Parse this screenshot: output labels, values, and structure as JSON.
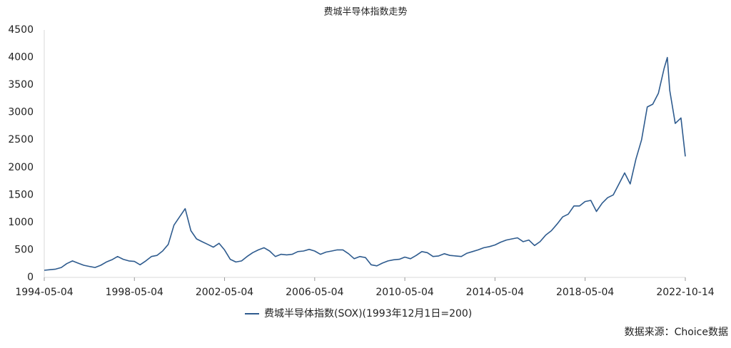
{
  "chart_data": {
    "type": "line",
    "title": "费城半导体指数走势",
    "source": "数据来源：Choice数据",
    "x": [
      "1994-05-04",
      "1994-08-04",
      "1994-11-04",
      "1995-02-04",
      "1995-05-04",
      "1995-08-04",
      "1995-11-04",
      "1996-02-04",
      "1996-05-04",
      "1996-08-04",
      "1996-11-04",
      "1997-02-04",
      "1997-05-04",
      "1997-08-04",
      "1997-11-04",
      "1998-02-04",
      "1998-05-04",
      "1998-08-04",
      "1998-11-04",
      "1999-02-04",
      "1999-05-04",
      "1999-08-04",
      "1999-11-04",
      "2000-02-04",
      "2000-05-04",
      "2000-08-04",
      "2000-11-04",
      "2001-02-04",
      "2001-05-04",
      "2001-08-04",
      "2001-11-04",
      "2002-02-04",
      "2002-05-04",
      "2002-08-04",
      "2002-11-04",
      "2003-02-04",
      "2003-05-04",
      "2003-08-04",
      "2003-11-04",
      "2004-02-04",
      "2004-05-04",
      "2004-08-04",
      "2004-11-04",
      "2005-02-04",
      "2005-05-04",
      "2005-08-04",
      "2005-11-04",
      "2006-02-04",
      "2006-05-04",
      "2006-08-04",
      "2006-11-04",
      "2007-02-04",
      "2007-05-04",
      "2007-08-04",
      "2007-11-04",
      "2008-02-04",
      "2008-05-04",
      "2008-08-04",
      "2008-11-04",
      "2009-02-04",
      "2009-05-04",
      "2009-08-04",
      "2009-11-04",
      "2010-02-04",
      "2010-05-04",
      "2010-08-04",
      "2010-11-04",
      "2011-02-04",
      "2011-05-04",
      "2011-08-04",
      "2011-11-04",
      "2012-02-04",
      "2012-05-04",
      "2012-08-04",
      "2012-11-04",
      "2013-02-04",
      "2013-05-04",
      "2013-08-04",
      "2013-11-04",
      "2014-02-04",
      "2014-05-04",
      "2014-08-04",
      "2014-11-04",
      "2015-02-04",
      "2015-05-04",
      "2015-08-04",
      "2015-11-04",
      "2016-02-04",
      "2016-05-04",
      "2016-08-04",
      "2016-11-04",
      "2017-02-04",
      "2017-05-04",
      "2017-08-04",
      "2017-11-04",
      "2018-02-04",
      "2018-05-04",
      "2018-08-04",
      "2018-11-04",
      "2019-02-04",
      "2019-05-04",
      "2019-08-04",
      "2019-11-04",
      "2020-02-04",
      "2020-05-04",
      "2020-08-04",
      "2020-11-04",
      "2021-02-04",
      "2021-05-04",
      "2021-08-04",
      "2021-11-04",
      "2021-12-27",
      "2022-02-04",
      "2022-05-04",
      "2022-08-04",
      "2022-10-14"
    ],
    "series": [
      {
        "name": "费城半导体指数(SOX)(1993年12月1日=200)",
        "color": "#2e5b8e",
        "values": [
          130,
          140,
          150,
          180,
          250,
          300,
          260,
          220,
          200,
          180,
          220,
          280,
          320,
          380,
          330,
          300,
          290,
          230,
          300,
          380,
          400,
          480,
          600,
          950,
          1100,
          1250,
          850,
          700,
          650,
          600,
          550,
          620,
          500,
          330,
          280,
          300,
          380,
          450,
          500,
          540,
          480,
          380,
          420,
          410,
          420,
          470,
          480,
          510,
          480,
          420,
          460,
          480,
          500,
          500,
          430,
          340,
          380,
          360,
          230,
          210,
          260,
          300,
          320,
          330,
          370,
          340,
          400,
          470,
          450,
          380,
          390,
          430,
          400,
          390,
          380,
          440,
          470,
          500,
          540,
          560,
          590,
          640,
          680,
          700,
          720,
          650,
          680,
          580,
          650,
          770,
          850,
          970,
          1100,
          1150,
          1300,
          1300,
          1380,
          1400,
          1200,
          1350,
          1450,
          1500,
          1700,
          1900,
          1700,
          2150,
          2500,
          3100,
          3150,
          3350,
          3800,
          4000,
          3400,
          2800,
          2900,
          2200
        ]
      }
    ],
    "xlim": [
      "1994-05-04",
      "2022-10-14"
    ],
    "xticks": [
      "1994-05-04",
      "1998-05-04",
      "2002-05-04",
      "2006-05-04",
      "2010-05-04",
      "2014-05-04",
      "2018-05-04",
      "2022-10-14"
    ],
    "ylim": [
      0,
      4500
    ],
    "yticks": [
      0,
      500,
      1000,
      1500,
      2000,
      2500,
      3000,
      3500,
      4000,
      4500
    ],
    "grid": false
  }
}
